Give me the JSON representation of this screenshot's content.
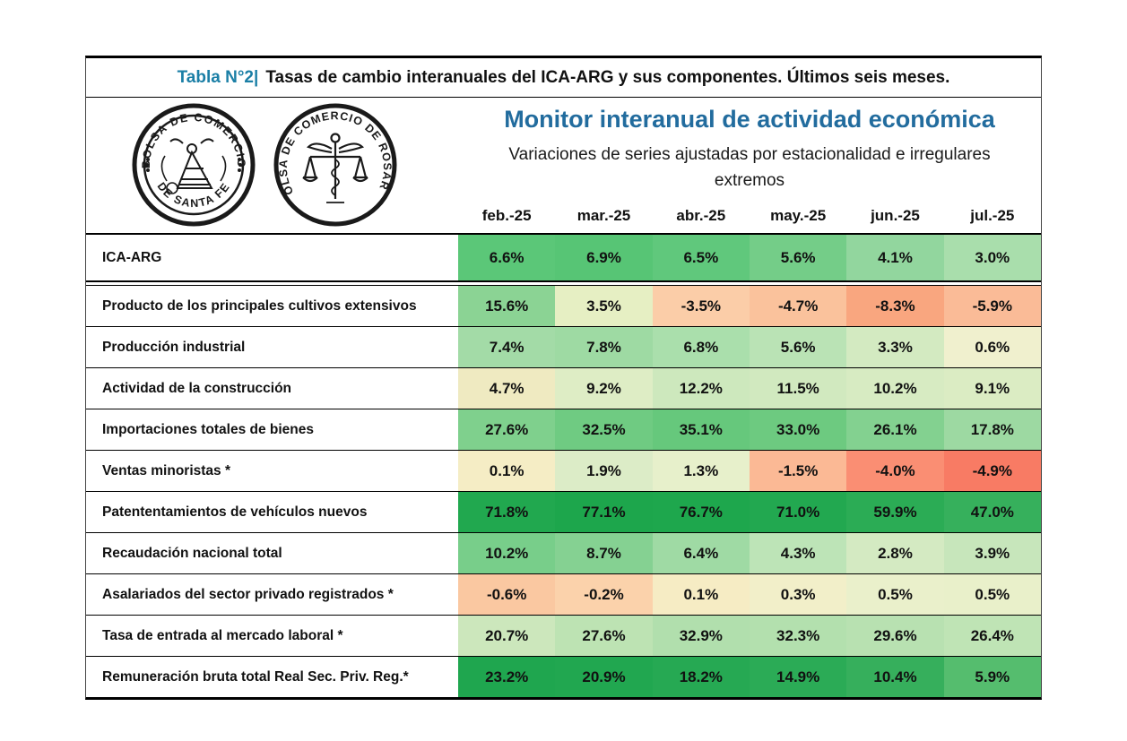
{
  "colors": {
    "caption_accent": "#1B7FA6",
    "title_blue": "#226C9E",
    "negative_strong": "#F87B64",
    "positive_strong": "#21A84F",
    "neutral_pale": "#F0F0CE"
  },
  "caption": {
    "prefix": "Tabla N°2|",
    "text": "Tasas de cambio interanuales del ICA-ARG y sus componentes. Últimos seis meses."
  },
  "logos": {
    "santa_fe": {
      "arc_top": "BOLSA DE COMERCIO",
      "arc_bottom": "DE SANTA FE"
    },
    "rosario": {
      "arc_text": "BOLSA DE COMERCIO DE ROSARIO"
    }
  },
  "chart_data": {
    "type": "heatmap",
    "title": "Monitor interanual de actividad económica",
    "subtitle": "Variaciones de series ajustadas por estacionalidad e irregulares extremos",
    "caption": "Tabla N°2| Tasas de cambio interanuales del ICA-ARG y sus componentes. Últimos seis meses.",
    "unit": "%",
    "value_note": "year-over-year % change, cells shaded red-to-green by value",
    "columns": [
      "feb.-25",
      "mar.-25",
      "abr.-25",
      "may.-25",
      "jun.-25",
      "jul.-25"
    ],
    "rows": [
      {
        "label": "ICA-ARG",
        "values": [
          6.6,
          6.9,
          6.5,
          5.6,
          4.1,
          3.0
        ],
        "cell_colors": [
          "#5BC778",
          "#57C575",
          "#60C87C",
          "#74CD88",
          "#92D69E",
          "#A9DEAC"
        ]
      },
      {
        "label": "Producto de los principales cultivos extensivos",
        "values": [
          15.6,
          3.5,
          -3.5,
          -4.7,
          -8.3,
          -5.9
        ],
        "cell_colors": [
          "#8BD394",
          "#E6EFC3",
          "#FBCDA8",
          "#FAC29C",
          "#F9A67F",
          "#FABB97"
        ]
      },
      {
        "label": "Producción industrial",
        "values": [
          7.4,
          7.8,
          6.8,
          5.6,
          3.3,
          0.6
        ],
        "cell_colors": [
          "#A3DBA7",
          "#9EDAA3",
          "#AADFAC",
          "#BAE3B5",
          "#D3EAC1",
          "#F0F0CE"
        ]
      },
      {
        "label": "Actividad de la construcción",
        "values": [
          4.7,
          9.2,
          12.2,
          11.5,
          10.2,
          9.1
        ],
        "cell_colors": [
          "#EFEAC1",
          "#DEEDC5",
          "#CDE8BD",
          "#D1E9BF",
          "#D7EBC2",
          "#DBECC3"
        ]
      },
      {
        "label": "Importaciones totales de bienes",
        "values": [
          27.6,
          32.5,
          35.1,
          33.0,
          26.1,
          17.8
        ],
        "cell_colors": [
          "#7FD08D",
          "#6FCB82",
          "#66C87C",
          "#6DCA80",
          "#83D190",
          "#9DD9A2"
        ]
      },
      {
        "label": "Ventas minoristas *",
        "values": [
          0.1,
          1.9,
          1.3,
          -1.5,
          -4.0,
          -4.9
        ],
        "cell_colors": [
          "#F5EDC5",
          "#DCECC7",
          "#E7F0CB",
          "#FBB995",
          "#FA8E73",
          "#F87B64"
        ]
      },
      {
        "label": "Patententamientos de vehículos nuevos",
        "values": [
          71.8,
          77.1,
          76.7,
          71.0,
          59.9,
          47.0
        ],
        "cell_colors": [
          "#21A84F",
          "#1DA64C",
          "#1EA74D",
          "#22A850",
          "#2BAC55",
          "#36B05C"
        ]
      },
      {
        "label": "Recaudación nacional total",
        "values": [
          10.2,
          8.7,
          6.4,
          4.3,
          2.8,
          3.9
        ],
        "cell_colors": [
          "#78CE8A",
          "#85D192",
          "#9FDAA4",
          "#BDE4B7",
          "#D4EAC2",
          "#C7E6BB"
        ]
      },
      {
        "label": "Asalariados del sector privado registrados *",
        "values": [
          -0.6,
          -0.2,
          0.1,
          0.3,
          0.5,
          0.5
        ],
        "cell_colors": [
          "#FAC8A1",
          "#FBD2AB",
          "#F6ECC4",
          "#F2EFC9",
          "#EAF0CB",
          "#E9F0CA"
        ]
      },
      {
        "label": "Tasa de entrada al mercado laboral *",
        "values": [
          20.7,
          27.6,
          32.9,
          32.3,
          29.6,
          26.4
        ],
        "cell_colors": [
          "#CCE7BC",
          "#BDE3B3",
          "#B1DFAD",
          "#B3E0AE",
          "#B8E1B1",
          "#BFE4B5"
        ]
      },
      {
        "label": "Remuneración bruta total Real Sec. Priv. Reg.*",
        "values": [
          23.2,
          20.9,
          18.2,
          14.9,
          10.4,
          5.9
        ],
        "cell_colors": [
          "#1FA64F",
          "#21A750",
          "#26A953",
          "#2BAB56",
          "#36AF5C",
          "#55BD6E"
        ]
      }
    ]
  }
}
